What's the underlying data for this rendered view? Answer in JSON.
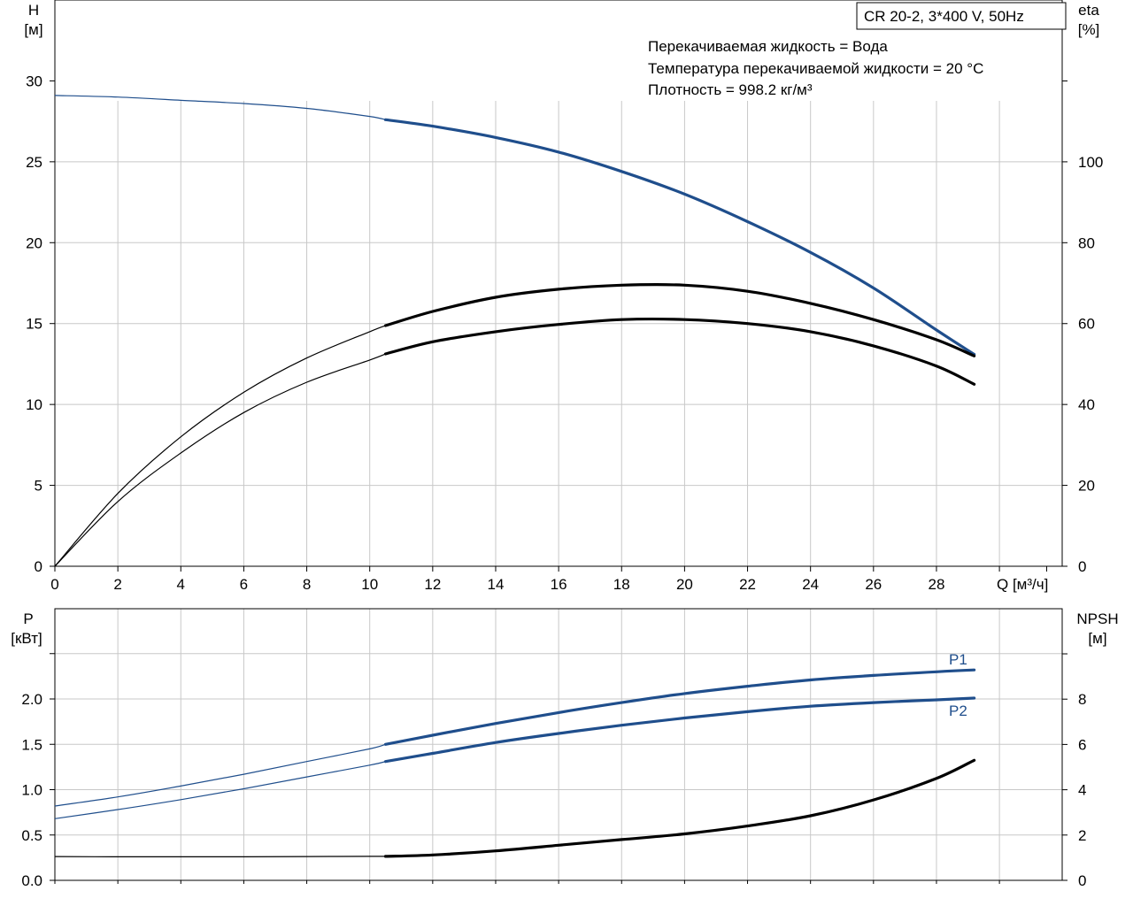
{
  "chart_data": [
    {
      "type": "line",
      "title": "CR 20-2, 3*400 V, 50Hz",
      "annotations": [
        "Перекачиваемая жидкость = Вода",
        "Температура перекачиваемой жидкости = 20 °C",
        "Плотность = 998.2 кг/м³"
      ],
      "xlabel": "Q [м³/ч]",
      "x_ticks": [
        "0",
        "2",
        "4",
        "6",
        "8",
        "10",
        "12",
        "14",
        "16",
        "18",
        "20",
        "22",
        "24",
        "26",
        "28"
      ],
      "xlim": [
        0,
        32
      ],
      "y_left": {
        "label_line1": "H",
        "label_line2": "[м]",
        "ticks": [
          "0",
          "5",
          "10",
          "15",
          "20",
          "25",
          "30"
        ],
        "lim": [
          0,
          35
        ]
      },
      "y_right": {
        "label_line1": "eta",
        "label_line2": "[%]",
        "ticks": [
          "0",
          "20",
          "40",
          "60",
          "80",
          "100"
        ],
        "lim": [
          0,
          140
        ]
      },
      "grid": true,
      "series": [
        {
          "axis": "left",
          "color": "#1f4e8c",
          "operating_start": 10.5,
          "x": [
            0,
            2,
            4,
            6,
            8,
            10,
            10.5,
            12,
            14,
            16,
            18,
            20,
            22,
            24,
            26,
            28,
            29.2
          ],
          "y": [
            29.1,
            29.0,
            28.8,
            28.6,
            28.3,
            27.8,
            27.6,
            27.2,
            26.5,
            25.6,
            24.4,
            23.0,
            21.3,
            19.4,
            17.2,
            14.6,
            13.1
          ]
        },
        {
          "axis": "right",
          "color": "#000000",
          "operating_start": 10.5,
          "x": [
            0,
            2,
            4,
            6,
            8,
            10,
            10.5,
            12,
            14,
            16,
            18,
            20,
            22,
            24,
            26,
            28,
            29.2
          ],
          "y": [
            0,
            18,
            32,
            43,
            51.5,
            58,
            59.5,
            63,
            66.5,
            68.5,
            69.5,
            69.5,
            68,
            65,
            61,
            56,
            52
          ]
        },
        {
          "axis": "right",
          "color": "#000000",
          "operating_start": 10.5,
          "x": [
            0,
            2,
            4,
            6,
            8,
            10,
            10.5,
            12,
            14,
            16,
            18,
            20,
            22,
            24,
            26,
            28,
            29.2
          ],
          "y": [
            0,
            16,
            28,
            38,
            45.5,
            51,
            52.5,
            55.5,
            58,
            59.8,
            61,
            61,
            60,
            58,
            54.5,
            49.5,
            45
          ]
        }
      ]
    },
    {
      "type": "line",
      "y_left": {
        "label_line1": "P",
        "label_line2": "[кВт]",
        "ticks": [
          "0.0",
          "0.5",
          "1.0",
          "1.5",
          "2.0"
        ],
        "lim": [
          0,
          3.0
        ]
      },
      "y_right": {
        "label_line1": "NPSH",
        "label_line2": "[м]",
        "ticks": [
          "0",
          "2",
          "4",
          "6",
          "8"
        ],
        "lim": [
          0,
          12
        ]
      },
      "xlim": [
        0,
        32
      ],
      "grid": true,
      "series": [
        {
          "name": "P1",
          "axis": "left",
          "color": "#1f4e8c",
          "operating_start": 10.5,
          "x": [
            0,
            2,
            4,
            6,
            8,
            10,
            10.5,
            12,
            14,
            16,
            18,
            20,
            22,
            24,
            26,
            28,
            29.2
          ],
          "y": [
            0.82,
            0.92,
            1.04,
            1.17,
            1.31,
            1.45,
            1.5,
            1.6,
            1.73,
            1.85,
            1.96,
            2.06,
            2.14,
            2.21,
            2.26,
            2.3,
            2.32
          ]
        },
        {
          "name": "P2",
          "axis": "left",
          "color": "#1f4e8c",
          "operating_start": 10.5,
          "x": [
            0,
            2,
            4,
            6,
            8,
            10,
            10.5,
            12,
            14,
            16,
            18,
            20,
            22,
            24,
            26,
            28,
            29.2
          ],
          "y": [
            0.68,
            0.78,
            0.89,
            1.01,
            1.14,
            1.27,
            1.31,
            1.4,
            1.52,
            1.62,
            1.71,
            1.79,
            1.86,
            1.92,
            1.96,
            1.99,
            2.01
          ]
        },
        {
          "axis": "right",
          "color": "#000000",
          "operating_start": 10.5,
          "x": [
            0,
            2,
            4,
            6,
            8,
            10,
            10.5,
            12,
            14,
            16,
            18,
            20,
            22,
            24,
            26,
            28,
            29.2
          ],
          "y": [
            1.05,
            1.04,
            1.04,
            1.04,
            1.05,
            1.06,
            1.06,
            1.12,
            1.3,
            1.55,
            1.8,
            2.05,
            2.4,
            2.85,
            3.55,
            4.5,
            5.3
          ]
        }
      ]
    }
  ]
}
